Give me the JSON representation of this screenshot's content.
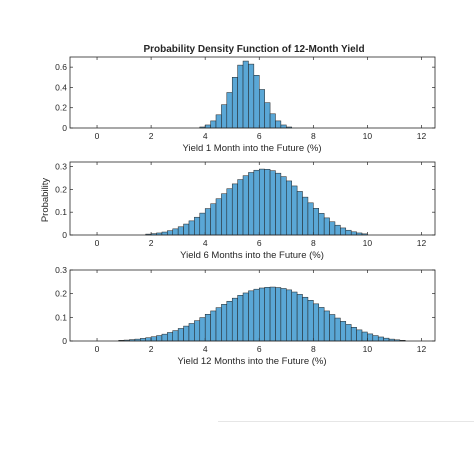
{
  "colors": {
    "bar_fill": "#5aa7d6",
    "bar_edge": "#1f1f1f",
    "axis": "#262626"
  },
  "figure": {
    "title": "Probability Density Function of 12-Month Yield",
    "shared_ylabel": "Probability"
  },
  "chart_data": [
    {
      "type": "bar",
      "title": "Probability Density Function of 12-Month Yield",
      "xlabel": "Yield 1 Month into the Future (%)",
      "ylabel": "Probability",
      "xlim": [
        -1,
        12.5
      ],
      "ylim": [
        0,
        0.7
      ],
      "xticks": [
        0,
        2,
        4,
        6,
        8,
        10,
        12
      ],
      "yticks": [
        0,
        0.2,
        0.4,
        0.6
      ],
      "ytick_labels": [
        "0",
        "0.2",
        "0.4",
        "0.6"
      ],
      "bin_width": 0.2,
      "grid": false,
      "x": [
        3.9,
        4.1,
        4.3,
        4.5,
        4.7,
        4.9,
        5.1,
        5.3,
        5.5,
        5.7,
        5.9,
        6.1,
        6.3,
        6.5,
        6.7,
        6.9,
        7.1
      ],
      "values": [
        0.01,
        0.03,
        0.07,
        0.13,
        0.23,
        0.35,
        0.5,
        0.62,
        0.66,
        0.63,
        0.52,
        0.38,
        0.25,
        0.14,
        0.07,
        0.03,
        0.01
      ]
    },
    {
      "type": "bar",
      "xlabel": "Yield 6 Months into the Future (%)",
      "ylabel": "Probability",
      "xlim": [
        -1,
        12.5
      ],
      "ylim": [
        0,
        0.32
      ],
      "xticks": [
        0,
        2,
        4,
        6,
        8,
        10,
        12
      ],
      "yticks": [
        0,
        0.1,
        0.2,
        0.3
      ],
      "ytick_labels": [
        "0",
        "0.1",
        "0.2",
        "0.3"
      ],
      "bin_width": 0.2,
      "grid": false,
      "x": [
        1.9,
        2.1,
        2.3,
        2.5,
        2.7,
        2.9,
        3.1,
        3.3,
        3.5,
        3.7,
        3.9,
        4.1,
        4.3,
        4.5,
        4.7,
        4.9,
        5.1,
        5.3,
        5.5,
        5.7,
        5.9,
        6.1,
        6.3,
        6.5,
        6.7,
        6.9,
        7.1,
        7.3,
        7.5,
        7.7,
        7.9,
        8.1,
        8.3,
        8.5,
        8.7,
        8.9,
        9.1,
        9.3,
        9.5,
        9.7,
        9.9
      ],
      "values": [
        0.004,
        0.006,
        0.009,
        0.013,
        0.019,
        0.027,
        0.036,
        0.048,
        0.062,
        0.078,
        0.096,
        0.116,
        0.137,
        0.159,
        0.181,
        0.203,
        0.224,
        0.243,
        0.26,
        0.274,
        0.284,
        0.289,
        0.288,
        0.282,
        0.271,
        0.256,
        0.237,
        0.215,
        0.191,
        0.166,
        0.141,
        0.117,
        0.095,
        0.075,
        0.058,
        0.043,
        0.031,
        0.021,
        0.014,
        0.009,
        0.005
      ]
    },
    {
      "type": "bar",
      "xlabel": "Yield 12 Months into the Future (%)",
      "ylabel": "Probability",
      "xlim": [
        -1,
        12.5
      ],
      "ylim": [
        0,
        0.3
      ],
      "xticks": [
        0,
        2,
        4,
        6,
        8,
        10,
        12
      ],
      "yticks": [
        0,
        0.1,
        0.2,
        0.3
      ],
      "ytick_labels": [
        "0",
        "0.1",
        "0.2",
        "0.3"
      ],
      "bin_width": 0.2,
      "grid": false,
      "x": [
        0.9,
        1.1,
        1.3,
        1.5,
        1.7,
        1.9,
        2.1,
        2.3,
        2.5,
        2.7,
        2.9,
        3.1,
        3.3,
        3.5,
        3.7,
        3.9,
        4.1,
        4.3,
        4.5,
        4.7,
        4.9,
        5.1,
        5.3,
        5.5,
        5.7,
        5.9,
        6.1,
        6.3,
        6.5,
        6.7,
        6.9,
        7.1,
        7.3,
        7.5,
        7.7,
        7.9,
        8.1,
        8.3,
        8.5,
        8.7,
        8.9,
        9.1,
        9.3,
        9.5,
        9.7,
        9.9,
        10.1,
        10.3,
        10.5,
        10.7,
        10.9,
        11.1,
        11.3
      ],
      "values": [
        0.003,
        0.004,
        0.006,
        0.008,
        0.011,
        0.014,
        0.018,
        0.023,
        0.029,
        0.036,
        0.044,
        0.053,
        0.063,
        0.074,
        0.086,
        0.099,
        0.113,
        0.127,
        0.141,
        0.155,
        0.168,
        0.181,
        0.193,
        0.203,
        0.212,
        0.219,
        0.224,
        0.227,
        0.228,
        0.226,
        0.222,
        0.216,
        0.207,
        0.197,
        0.185,
        0.172,
        0.157,
        0.142,
        0.127,
        0.112,
        0.097,
        0.083,
        0.07,
        0.058,
        0.047,
        0.038,
        0.03,
        0.023,
        0.017,
        0.012,
        0.008,
        0.005,
        0.003
      ]
    }
  ]
}
